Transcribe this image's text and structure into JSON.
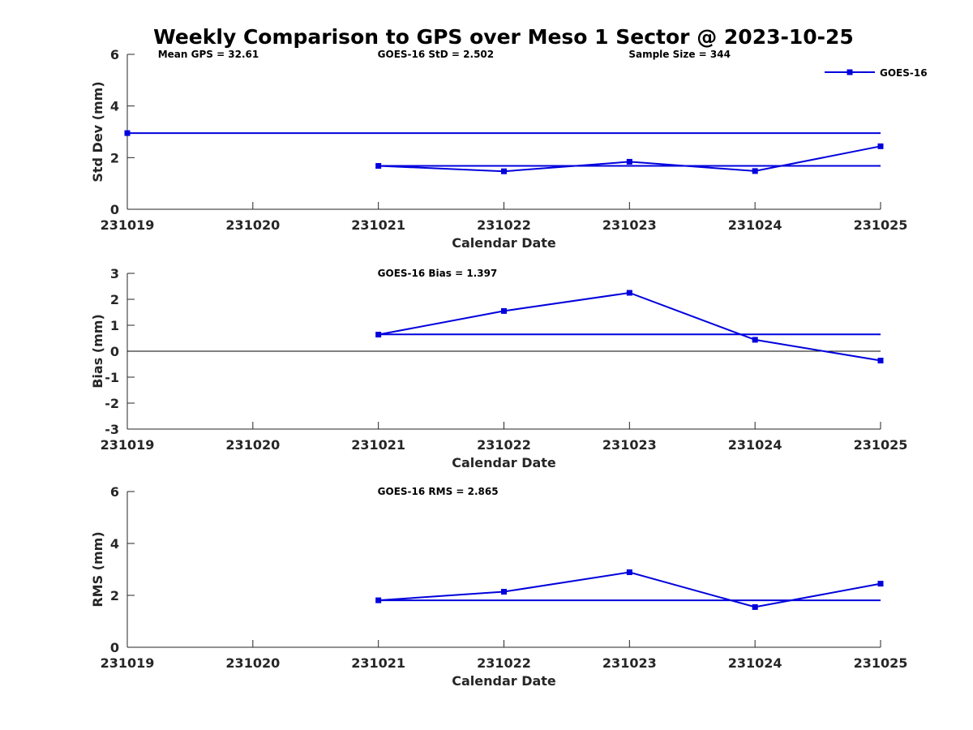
{
  "title": "Weekly Comparison to GPS over Meso 1 Sector @ 2023-10-25",
  "colors": {
    "series": "#0000dd",
    "axis": "#262626",
    "zero_line": "#000000"
  },
  "legend": {
    "label": "GOES-16",
    "placement": "top-right"
  },
  "chart_data": [
    {
      "type": "line",
      "id": "std",
      "ylabel": "Std Dev (mm)",
      "xlabel": "Calendar Date",
      "ylim": [
        0,
        6
      ],
      "yticks": [
        "0",
        "2",
        "4",
        "6"
      ],
      "ytick_values": [
        0,
        2,
        4,
        6
      ],
      "categories": [
        "231019",
        "231020",
        "231021",
        "231022",
        "231023",
        "231024",
        "231025"
      ],
      "series": [
        {
          "name": "GOES-16",
          "x": [
            2,
            3,
            4,
            5,
            6
          ],
          "values": [
            1.68,
            1.47,
            1.84,
            1.48,
            2.44
          ],
          "markers": true
        }
      ],
      "reference_lines": [
        {
          "name": "GOES-16 weekly mean",
          "y": 1.68,
          "x_from": 2,
          "x_to": 6
        },
        {
          "name": "GPS reference",
          "y": 2.95,
          "x_from": 0,
          "x_to": 6,
          "marker_at_start": true
        }
      ],
      "zero_line": false,
      "annotations": [
        {
          "text": "Mean GPS = 32.61",
          "x": 0.25
        },
        {
          "text": "GOES-16 StD = 2.502",
          "x": 2.0
        },
        {
          "text": "Sample Size = 344",
          "x": 4.0
        }
      ],
      "show_legend": true
    },
    {
      "type": "line",
      "id": "bias",
      "ylabel": "Bias (mm)",
      "xlabel": "Calendar Date",
      "ylim": [
        -3,
        3
      ],
      "yticks": [
        "-3",
        "-2",
        "-1",
        "0",
        "1",
        "2",
        "3"
      ],
      "ytick_values": [
        -3,
        -2,
        -1,
        0,
        1,
        2,
        3
      ],
      "categories": [
        "231019",
        "231020",
        "231021",
        "231022",
        "231023",
        "231024",
        "231025"
      ],
      "series": [
        {
          "name": "GOES-16",
          "x": [
            2,
            3,
            4,
            5,
            6
          ],
          "values": [
            0.64,
            1.55,
            2.25,
            0.44,
            -0.36
          ],
          "markers": true
        }
      ],
      "reference_lines": [
        {
          "name": "GOES-16 weekly mean",
          "y": 0.65,
          "x_from": 2,
          "x_to": 6
        }
      ],
      "zero_line": true,
      "annotations": [
        {
          "text": "GOES-16 Bias  = 1.397",
          "x": 2.0
        }
      ],
      "show_legend": false
    },
    {
      "type": "line",
      "id": "rms",
      "ylabel": "RMS (mm)",
      "xlabel": "Calendar Date",
      "ylim": [
        0,
        6
      ],
      "yticks": [
        "0",
        "2",
        "4",
        "6"
      ],
      "ytick_values": [
        0,
        2,
        4,
        6
      ],
      "categories": [
        "231019",
        "231020",
        "231021",
        "231022",
        "231023",
        "231024",
        "231025"
      ],
      "series": [
        {
          "name": "GOES-16",
          "x": [
            2,
            3,
            4,
            5,
            6
          ],
          "values": [
            1.81,
            2.14,
            2.89,
            1.55,
            2.45
          ],
          "markers": true
        }
      ],
      "reference_lines": [
        {
          "name": "GOES-16 weekly mean",
          "y": 1.81,
          "x_from": 2,
          "x_to": 6
        }
      ],
      "zero_line": false,
      "annotations": [
        {
          "text": "GOES-16 RMS = 2.865",
          "x": 2.0
        }
      ],
      "show_legend": false
    }
  ]
}
